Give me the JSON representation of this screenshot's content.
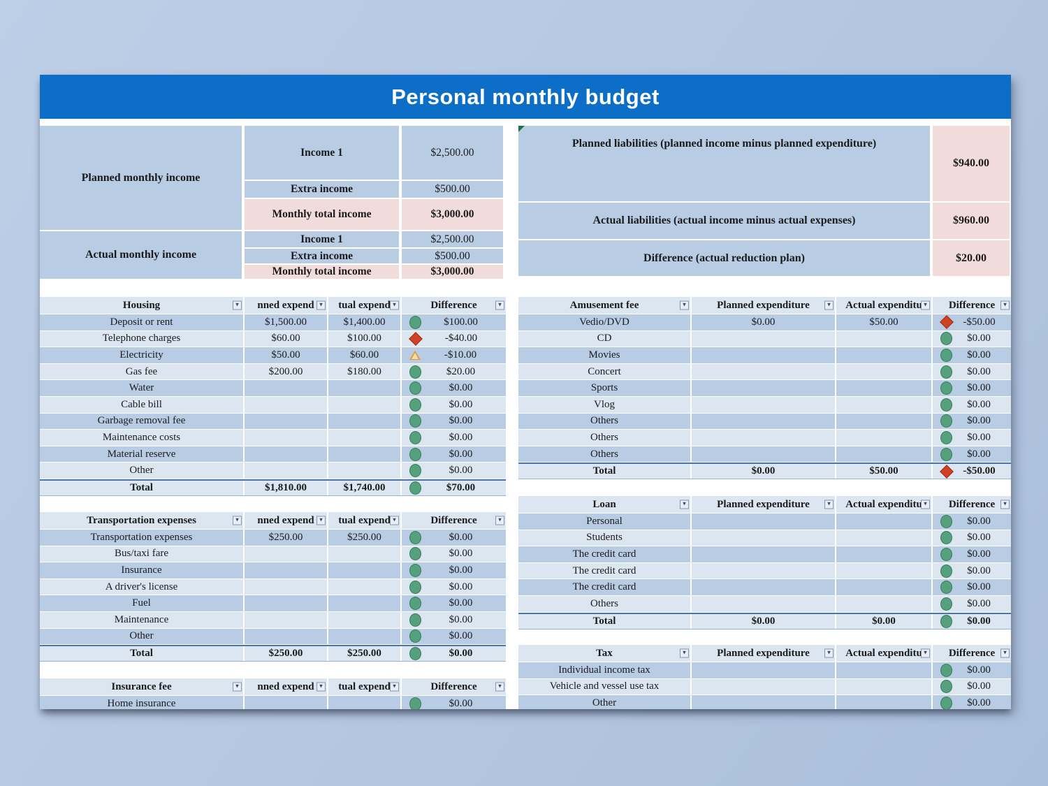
{
  "title": "Personal monthly budget",
  "colors": {
    "title_bar": "#0c6ec6",
    "row_dark": "#b8cce4",
    "row_light": "#dce6f1",
    "pink": "#f2dcdb",
    "icon_green": "#55a17e",
    "icon_red": "#cf4125",
    "icon_yellow": "#f7dcab",
    "page_bg": "#b5c8e2"
  },
  "icons": {
    "filter_dropdown": "▾"
  },
  "income": {
    "planned_label": "Planned monthly income",
    "actual_label": "Actual monthly income",
    "planned_rows": [
      {
        "name": "Income 1",
        "value": "$2,500.00"
      },
      {
        "name": "Extra income",
        "value": "$500.00"
      },
      {
        "name": "Monthly total income",
        "value": "$3,000.00"
      }
    ],
    "actual_rows": [
      {
        "name": "Income 1",
        "value": "$2,500.00"
      },
      {
        "name": "Extra income",
        "value": "$500.00"
      },
      {
        "name": "Monthly total income",
        "value": "$3,000.00"
      }
    ]
  },
  "liabilities": {
    "rows": [
      {
        "label": "Planned liabilities (planned income minus planned expenditure)",
        "value": "$940.00"
      },
      {
        "label": "Actual liabilities (actual income minus actual expenses)",
        "value": "$960.00"
      },
      {
        "label": "Difference (actual reduction plan)",
        "value": "$20.00"
      }
    ]
  },
  "tables": [
    {
      "title": "Housing",
      "col_planned": "nned expend",
      "col_actual": "tual expend",
      "col_diff": "Difference",
      "rows": [
        {
          "label": "Deposit or rent",
          "planned": "$1,500.00",
          "actual": "$1,400.00",
          "icon": "green-circle",
          "diff": "$100.00"
        },
        {
          "label": "Telephone charges",
          "planned": "$60.00",
          "actual": "$100.00",
          "icon": "red-diamond",
          "diff": "-$40.00"
        },
        {
          "label": "Electricity",
          "planned": "$50.00",
          "actual": "$60.00",
          "icon": "yellow-triangle",
          "diff": "-$10.00"
        },
        {
          "label": "Gas fee",
          "planned": "$200.00",
          "actual": "$180.00",
          "icon": "green-circle",
          "diff": "$20.00"
        },
        {
          "label": "Water",
          "planned": "",
          "actual": "",
          "icon": "green-circle",
          "diff": "$0.00"
        },
        {
          "label": "Cable bill",
          "planned": "",
          "actual": "",
          "icon": "green-circle",
          "diff": "$0.00"
        },
        {
          "label": "Garbage removal fee",
          "planned": "",
          "actual": "",
          "icon": "green-circle",
          "diff": "$0.00"
        },
        {
          "label": "Maintenance costs",
          "planned": "",
          "actual": "",
          "icon": "green-circle",
          "diff": "$0.00"
        },
        {
          "label": "Material reserve",
          "planned": "",
          "actual": "",
          "icon": "green-circle",
          "diff": "$0.00"
        },
        {
          "label": "Other",
          "planned": "",
          "actual": "",
          "icon": "green-circle",
          "diff": "$0.00"
        }
      ],
      "total": {
        "label": "Total",
        "planned": "$1,810.00",
        "actual": "$1,740.00",
        "icon": "green-circle",
        "diff": "$70.00"
      }
    },
    {
      "title": "Transportation expenses",
      "col_planned": "nned expend",
      "col_actual": "tual expend",
      "col_diff": "Difference",
      "rows": [
        {
          "label": "Transportation expenses",
          "planned": "$250.00",
          "actual": "$250.00",
          "icon": "green-circle",
          "diff": "$0.00"
        },
        {
          "label": "Bus/taxi fare",
          "planned": "",
          "actual": "",
          "icon": "green-circle",
          "diff": "$0.00"
        },
        {
          "label": "Insurance",
          "planned": "",
          "actual": "",
          "icon": "green-circle",
          "diff": "$0.00"
        },
        {
          "label": "A driver's license",
          "planned": "",
          "actual": "",
          "icon": "green-circle",
          "diff": "$0.00"
        },
        {
          "label": "Fuel",
          "planned": "",
          "actual": "",
          "icon": "green-circle",
          "diff": "$0.00"
        },
        {
          "label": "Maintenance",
          "planned": "",
          "actual": "",
          "icon": "green-circle",
          "diff": "$0.00"
        },
        {
          "label": "Other",
          "planned": "",
          "actual": "",
          "icon": "green-circle",
          "diff": "$0.00"
        }
      ],
      "total": {
        "label": "Total",
        "planned": "$250.00",
        "actual": "$250.00",
        "icon": "green-circle",
        "diff": "$0.00"
      }
    },
    {
      "title": "Insurance fee",
      "col_planned": "nned expend",
      "col_actual": "tual expend",
      "col_diff": "Difference",
      "rows": [
        {
          "label": "Home insurance",
          "planned": "",
          "actual": "",
          "icon": "green-circle",
          "diff": "$0.00"
        }
      ],
      "total": null
    },
    {
      "title": "Amusement fee",
      "col_planned": "Planned expenditure",
      "col_actual": "Actual expenditu",
      "col_diff": "Difference",
      "rows": [
        {
          "label": "Vedio/DVD",
          "planned": "$0.00",
          "actual": "$50.00",
          "icon": "red-diamond",
          "diff": "-$50.00"
        },
        {
          "label": "CD",
          "planned": "",
          "actual": "",
          "icon": "green-circle",
          "diff": "$0.00"
        },
        {
          "label": "Movies",
          "planned": "",
          "actual": "",
          "icon": "green-circle",
          "diff": "$0.00"
        },
        {
          "label": "Concert",
          "planned": "",
          "actual": "",
          "icon": "green-circle",
          "diff": "$0.00"
        },
        {
          "label": "Sports",
          "planned": "",
          "actual": "",
          "icon": "green-circle",
          "diff": "$0.00"
        },
        {
          "label": "Vlog",
          "planned": "",
          "actual": "",
          "icon": "green-circle",
          "diff": "$0.00"
        },
        {
          "label": "Others",
          "planned": "",
          "actual": "",
          "icon": "green-circle",
          "diff": "$0.00"
        },
        {
          "label": "Others",
          "planned": "",
          "actual": "",
          "icon": "green-circle",
          "diff": "$0.00"
        },
        {
          "label": "Others",
          "planned": "",
          "actual": "",
          "icon": "green-circle",
          "diff": "$0.00"
        }
      ],
      "total": {
        "label": "Total",
        "planned": "$0.00",
        "actual": "$50.00",
        "icon": "red-diamond",
        "diff": "-$50.00"
      }
    },
    {
      "title": "Loan",
      "col_planned": "Planned expenditure",
      "col_actual": "Actual expenditu",
      "col_diff": "Difference",
      "rows": [
        {
          "label": "Personal",
          "planned": "",
          "actual": "",
          "icon": "green-circle",
          "diff": "$0.00"
        },
        {
          "label": "Students",
          "planned": "",
          "actual": "",
          "icon": "green-circle",
          "diff": "$0.00"
        },
        {
          "label": "The credit card",
          "planned": "",
          "actual": "",
          "icon": "green-circle",
          "diff": "$0.00"
        },
        {
          "label": "The credit card",
          "planned": "",
          "actual": "",
          "icon": "green-circle",
          "diff": "$0.00"
        },
        {
          "label": "The credit card",
          "planned": "",
          "actual": "",
          "icon": "green-circle",
          "diff": "$0.00"
        },
        {
          "label": "Others",
          "planned": "",
          "actual": "",
          "icon": "green-circle",
          "diff": "$0.00"
        }
      ],
      "total": {
        "label": "Total",
        "planned": "$0.00",
        "actual": "$0.00",
        "icon": "green-circle",
        "diff": "$0.00"
      }
    },
    {
      "title": "Tax",
      "col_planned": "Planned expenditure",
      "col_actual": "Actual expenditu",
      "col_diff": "Difference",
      "rows": [
        {
          "label": "Individual income tax",
          "planned": "",
          "actual": "",
          "icon": "green-circle",
          "diff": "$0.00"
        },
        {
          "label": "Vehicle and vessel use tax",
          "planned": "",
          "actual": "",
          "icon": "green-circle",
          "diff": "$0.00"
        },
        {
          "label": "Other",
          "planned": "",
          "actual": "",
          "icon": "green-circle",
          "diff": "$0.00"
        }
      ],
      "total": null
    }
  ]
}
